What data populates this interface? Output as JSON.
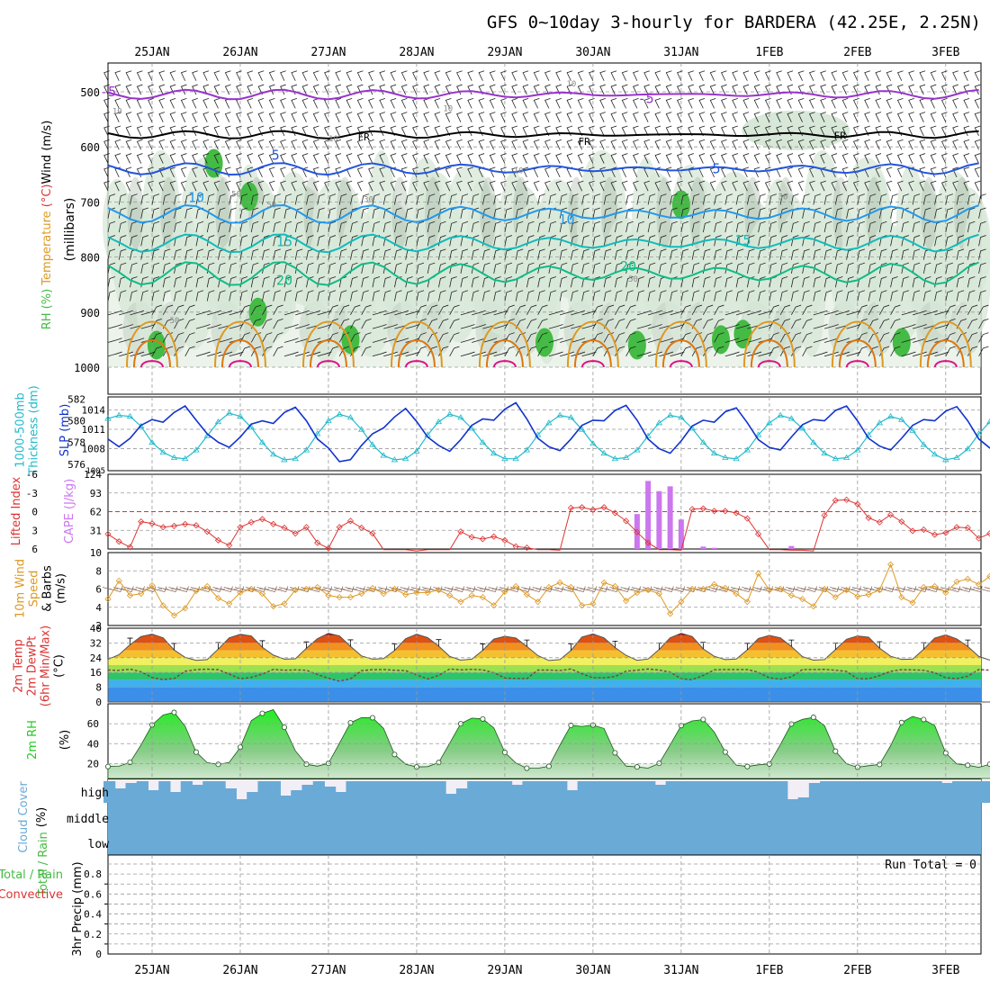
{
  "title": "GFS 0~10day 3-hourly for BARDERA (42.25E, 2.25N)",
  "colors": {
    "rh_fill": "#d8e8d8",
    "rh_dark": "#9fb09f",
    "rh_green": "#44bb44",
    "t_minus5": "#9933cc",
    "t_fr": "#000000",
    "t_5": "#2255dd",
    "t_10": "#2299ee",
    "t_15": "#11bbbb",
    "t_20": "#11bb88",
    "t_25": "#dd9922",
    "t_30": "#dd7711",
    "t_35": "#dd1188",
    "thick": "#22bbcc",
    "slp": "#1133cc",
    "li": "#dd3333",
    "cape": "#cc77ee",
    "wind": "#dd9922",
    "barb": "#886655",
    "rh2m": "#22cc22",
    "cloud": "#6aaad6",
    "grid": "#999999"
  },
  "chart_data": [
    {
      "type": "contour-timeseries",
      "name": "upper-air",
      "title": "RH (%) / Temperature (°C) / Wind (m/s)",
      "ylabel_parts": [
        "RH (%)",
        "Temperature (°C)",
        "Wind (m/s)"
      ],
      "yunit": "(millibars)",
      "yticks": [
        "500",
        "600",
        "700",
        "800",
        "900",
        "1000"
      ],
      "x_days": [
        "25JAN",
        "26JAN",
        "27JAN",
        "28JAN",
        "29JAN",
        "30JAN",
        "31JAN",
        "1FEB",
        "2FEB",
        "3FEB"
      ],
      "contour_labels": [
        {
          "text": "-5",
          "day": 0.0,
          "p": 500,
          "c": "t_minus5"
        },
        {
          "text": "-5",
          "day": 6.1,
          "p": 512,
          "c": "t_minus5"
        },
        {
          "text": "FR",
          "day": 2.9,
          "p": 580,
          "c": "t_fr"
        },
        {
          "text": "FR",
          "day": 5.4,
          "p": 588,
          "c": "t_fr"
        },
        {
          "text": "FR",
          "day": 8.3,
          "p": 578,
          "c": "t_fr"
        },
        {
          "text": "5",
          "day": 1.9,
          "p": 615,
          "c": "t_5"
        },
        {
          "text": "5",
          "day": 6.9,
          "p": 640,
          "c": "t_5"
        },
        {
          "text": "10",
          "day": 1.0,
          "p": 692,
          "c": "t_10"
        },
        {
          "text": "10",
          "day": 5.2,
          "p": 732,
          "c": "t_10"
        },
        {
          "text": "15",
          "day": 2.0,
          "p": 772,
          "c": "t_15"
        },
        {
          "text": "15",
          "day": 7.2,
          "p": 770,
          "c": "t_15"
        },
        {
          "text": "20",
          "day": 2.0,
          "p": 842,
          "c": "t_20"
        },
        {
          "text": "20",
          "day": 5.9,
          "p": 817,
          "c": "t_20"
        }
      ],
      "rh_labels": [
        "10",
        "10",
        "10",
        "10",
        "10",
        "30",
        "30",
        "50",
        "50",
        "50",
        "50"
      ]
    },
    {
      "type": "line",
      "name": "thickness-slp",
      "ylabel_left": "1000-500mb Thickness (dm)",
      "ylabel_right": "SLP (mb)",
      "left_ticks": [
        "576",
        "578",
        "580",
        "582"
      ],
      "right_ticks": [
        "1008",
        "1011",
        "1014"
      ],
      "bottom_label": "1005",
      "series": [
        {
          "name": "Thickness",
          "c": "thick",
          "ylim": [
            575.4,
            582.2
          ],
          "values": [
            580.2,
            580.5,
            580.4,
            579.5,
            578.0,
            577.1,
            576.6,
            576.5,
            577.3,
            578.6,
            579.9,
            580.7,
            580.4,
            579.4,
            578.0,
            576.9,
            576.4,
            576.5,
            577.3,
            578.8,
            580.0,
            580.6,
            580.3,
            579.2,
            577.8,
            576.8,
            576.4,
            576.5,
            577.2,
            578.7,
            579.9,
            580.6,
            580.3,
            579.3,
            578.0,
            577.0,
            576.5,
            576.5,
            577.3,
            578.7,
            579.8,
            580.5,
            580.3,
            579.2,
            577.9,
            577.0,
            576.5,
            576.6,
            577.3,
            578.6,
            579.8,
            580.5,
            580.3,
            579.3,
            578.0,
            577.0,
            576.6,
            576.5,
            577.3,
            578.7,
            579.8,
            580.5,
            580.2,
            579.3,
            578.0,
            577.0,
            576.5,
            576.6,
            577.3,
            578.7,
            579.8,
            580.4,
            580.1,
            579.1,
            577.8,
            576.9,
            576.4,
            576.6,
            577.4,
            578.8,
            579.9,
            580.4,
            580.1,
            579.1,
            577.8,
            576.9,
            576.5,
            576.6,
            577.4,
            578.7,
            579.8,
            580.3,
            580.0,
            579.0,
            577.8,
            576.9,
            576.5,
            576.8
          ]
        },
        {
          "name": "SLP",
          "c": "slp",
          "ylim": [
            1004.6,
            1016.0
          ],
          "values": [
            1009.5,
            1008.3,
            1009.6,
            1011.6,
            1012.5,
            1012.1,
            1013.6,
            1014.6,
            1012.4,
            1010.3,
            1009.0,
            1008.2,
            1009.8,
            1011.8,
            1012.3,
            1011.9,
            1013.6,
            1014.4,
            1012.3,
            1009.5,
            1008.1,
            1006.0,
            1006.3,
            1008.5,
            1010.3,
            1011.2,
            1012.9,
            1014.2,
            1012.2,
            1009.8,
            1008.5,
            1007.6,
            1009.4,
            1011.6,
            1012.6,
            1012.4,
            1014.1,
            1015.1,
            1012.6,
            1009.6,
            1008.3,
            1007.7,
            1009.5,
            1011.6,
            1012.4,
            1012.3,
            1013.9,
            1014.7,
            1012.4,
            1009.5,
            1008.0,
            1007.3,
            1009.2,
            1011.5,
            1012.4,
            1012.1,
            1013.7,
            1014.3,
            1012.0,
            1009.4,
            1008.2,
            1007.8,
            1009.8,
            1011.7,
            1012.5,
            1012.3,
            1013.9,
            1014.6,
            1012.3,
            1009.6,
            1008.4,
            1007.8,
            1009.6,
            1011.6,
            1012.5,
            1012.3,
            1013.8,
            1014.5,
            1012.3,
            1009.5,
            1008.1,
            1007.4,
            1009.3,
            1011.4,
            1012.4,
            1012.2,
            1013.8,
            1014.6,
            1012.4,
            1009.7,
            1008.4,
            1007.7,
            1009.5,
            1011.5,
            1012.4,
            1012.3,
            1013.8,
            1014.3
          ]
        }
      ]
    },
    {
      "type": "line+bar",
      "name": "lifted-cape",
      "ylabel_left": "Lifted Index",
      "ylabel_right": "CAPE (J/kg)",
      "left_ticks": [
        "-6",
        "-3",
        "0",
        "3",
        "6"
      ],
      "right_ticks": [
        "31",
        "62",
        "93",
        "124"
      ],
      "li": [
        3.6,
        4.8,
        5.7,
        1.6,
        1.9,
        2.5,
        2.3,
        2.0,
        2.2,
        3.2,
        4.6,
        5.4,
        2.5,
        1.7,
        1.2,
        2.0,
        2.6,
        3.5,
        2.5,
        5.0,
        5.9,
        2.5,
        1.5,
        2.6,
        3.5,
        6.1,
        6.1,
        6.1,
        6.3,
        6.1,
        6.1,
        6.1,
        3.2,
        4.1,
        4.4,
        4.0,
        4.6,
        5.6,
        5.8,
        6.1,
        6.1,
        6.2,
        -0.6,
        -0.7,
        -0.3,
        -0.7,
        0.2,
        1.5,
        3.3,
        5.0,
        6.1,
        6.1,
        6.2,
        -0.4,
        -0.5,
        -0.1,
        -0.1,
        0.2,
        1.1,
        3.6,
        6.1,
        6.1,
        6.2,
        6.2,
        6.3,
        0.6,
        -1.8,
        -1.9,
        -1.2,
        1.0,
        1.7,
        0.5,
        1.6,
        3.1,
        2.9,
        3.7,
        3.4,
        2.5,
        2.6,
        4.3,
        3.5,
        3.0,
        2.8,
        3.3,
        4.7,
        3.7,
        2.6,
        2.8,
        4.1,
        3.9,
        3.4,
        3.2,
        2.9,
        4.0,
        4.3,
        3.6,
        3.4,
        3.1
      ],
      "cape": {
        "31.0": 58,
        "31.125": 113,
        "31.25": 96,
        "31.375": 104,
        "31.5": 49,
        "31.75": 4,
        "31.875": 2,
        "32.75": 5
      }
    },
    {
      "type": "line",
      "name": "wind10",
      "ylabel_parts": [
        "10m Wind",
        "Speed",
        "& Barbs",
        "(m/s)"
      ],
      "yticks": [
        "2",
        "4",
        "6",
        "8",
        "10"
      ],
      "values": [
        4.9,
        6.9,
        5.3,
        5.5,
        6.4,
        4.2,
        3.1,
        3.9,
        5.8,
        6.3,
        5.0,
        4.4,
        5.6,
        6.0,
        5.5,
        4.1,
        4.4,
        5.9,
        6.0,
        6.2,
        5.3,
        5.1,
        5.1,
        5.5,
        6.1,
        5.5,
        6.0,
        5.4,
        5.6,
        5.6,
        5.9,
        5.3,
        4.6,
        5.3,
        5.1,
        4.2,
        5.7,
        6.3,
        5.4,
        4.6,
        6.2,
        6.7,
        6.2,
        4.2,
        4.4,
        6.7,
        6.3,
        4.7,
        5.6,
        5.9,
        5.5,
        3.3,
        4.6,
        6.0,
        6.0,
        6.5,
        6.1,
        5.5,
        4.6,
        7.7,
        5.9,
        6.0,
        5.3,
        4.9,
        4.1,
        6.0,
        5.1,
        5.9,
        5.2,
        5.4,
        5.9,
        8.7,
        5.1,
        4.5,
        6.2,
        6.3,
        5.6,
        6.8,
        7.1,
        6.5,
        7.4,
        9.5,
        6.9,
        4.7,
        6.0,
        5.1,
        6.0,
        5.7,
        9.8,
        6.6,
        5.4,
        3.2,
        4.4,
        6.1,
        5.3,
        4.9,
        5.8,
        5.8
      ]
    },
    {
      "type": "area",
      "name": "temp2m",
      "ylabel_parts": [
        "2m Temp",
        "2m DewPt",
        "(6hr Min/Max)",
        "(°C)"
      ],
      "yticks": [
        "0",
        "8",
        "16",
        "24",
        "32",
        "40"
      ],
      "temp": [
        23.1,
        25.6,
        31.1,
        35.5,
        36.8,
        34.8,
        28.2,
        24.2,
        22.6,
        23.0,
        28.7,
        34.8,
        36.7,
        35.8,
        29.7,
        25.4,
        23.2,
        23.4,
        29.1,
        34.3,
        37.2,
        35.8,
        30.2,
        25.0,
        23.2,
        23.5,
        27.9,
        34.3,
        36.8,
        34.9,
        30.3,
        24.7,
        22.7,
        23.2,
        28.0,
        34.1,
        35.6,
        34.7,
        30.1,
        25.1,
        22.5,
        23.0,
        27.9,
        35.2,
        36.9,
        34.8,
        29.5,
        25.3,
        22.6,
        23.3,
        28.5,
        34.8,
        37.2,
        35.5,
        28.8,
        24.8,
        23.0,
        23.3,
        28.3,
        34.4,
        36.1,
        34.8,
        30.1,
        24.6,
        22.7,
        23.0,
        28.4,
        34.0,
        35.8,
        35.1,
        29.2,
        24.8,
        23.1,
        23.2,
        28.6,
        34.7,
        36.4,
        34.2,
        30.1,
        24.7,
        22.7,
        23.5,
        27.9,
        34.2,
        36.3,
        34.2,
        29.5,
        25.3,
        23.2,
        23.3,
        28.1,
        34.5,
        35.7,
        34.3,
        29.5,
        25.0,
        22.8,
        27.0
      ],
      "dew": [
        17.3,
        17.1,
        17.8,
        16.4,
        13.2,
        12.2,
        12.7,
        16.7,
        17.5,
        17.8,
        17.5,
        15.1,
        12.6,
        13.3,
        15.1,
        17.7,
        17.2,
        17.4,
        17.2,
        14.9,
        12.9,
        11.3,
        12.6,
        17.0,
        17.5,
        17.6,
        17.2,
        17.0,
        14.7,
        12.5,
        14.4,
        17.9,
        17.4,
        17.7,
        17.4,
        15.9,
        13.0,
        12.8,
        12.7,
        17.3,
        17.3,
        17.0,
        17.9,
        15.3,
        13.1,
        13.1,
        13.8,
        16.7,
        17.2,
        17.9,
        17.3,
        16.2,
        12.6,
        12.1,
        14.4,
        17.4,
        17.6,
        17.6,
        17.6,
        16.1,
        13.1,
        12.4,
        13.6,
        17.6,
        17.6,
        17.7,
        17.2,
        16.6,
        12.6,
        12.6,
        14.3,
        16.7,
        17.5,
        17.4,
        17.2,
        15.9,
        13.1,
        12.7,
        14.0,
        17.6,
        17.2,
        17.7,
        17.5,
        16.1,
        13.2,
        13.0,
        14.8,
        17.4,
        17.5,
        17.3,
        17.1,
        16.2,
        13.0,
        13.0,
        13.8,
        16.7,
        17.5,
        17.3
      ]
    },
    {
      "type": "area",
      "name": "rh2m",
      "ylabel_parts": [
        "2m RH",
        "(%)"
      ],
      "yticks": [
        "20",
        "40",
        "60"
      ],
      "values": [
        17.0,
        17.3,
        21.2,
        38.7,
        58.8,
        68.7,
        71.4,
        57.5,
        31.5,
        20.9,
        19.2,
        21.2,
        36.4,
        63.0,
        70.4,
        74.1,
        56.4,
        32.8,
        19.3,
        17.4,
        20.2,
        40.4,
        60.9,
        66.2,
        66.0,
        55.2,
        29.1,
        19.4,
        16.6,
        16.9,
        21.0,
        40.5,
        60.0,
        65.6,
        64.8,
        55.9,
        31.3,
        20.5,
        15.3,
        15.3,
        17.3,
        38.4,
        58.4,
        57.3,
        58.7,
        55.2,
        30.8,
        17.5,
        16.6,
        15.4,
        20.2,
        38.7,
        58.1,
        62.8,
        64.2,
        51.6,
        31.6,
        18.5,
        17.0,
        18.7,
        19.6,
        39.1,
        59.7,
        64.4,
        66.4,
        58.0,
        32.4,
        19.7,
        16.3,
        17.8,
        19.1,
        38.0,
        61.2,
        67.3,
        64.2,
        58.1,
        30.6,
        19.6,
        18.3,
        16.2,
        19.4,
        38.0,
        55.4,
        58.2,
        57.6,
        49.8,
        31.6,
        19.4,
        16.5,
        17.1,
        19.2,
        39.4,
        58.2,
        62.2,
        61.1,
        53.0,
        30.4,
        19.0
      ]
    },
    {
      "type": "area",
      "name": "cloud",
      "ylabel_parts": [
        "Cloud Cover",
        "(%)"
      ],
      "levels": [
        "high",
        "middle",
        "low"
      ]
    },
    {
      "type": "bar",
      "name": "precip",
      "ylabel_parts": [
        "3hr Precip (mm)",
        "Total / Rain",
        "Convective"
      ],
      "yticks": [
        "0",
        "0.2",
        "0.4",
        "0.6",
        "0.8"
      ],
      "run_total": "Run Total = 0",
      "values": []
    }
  ]
}
